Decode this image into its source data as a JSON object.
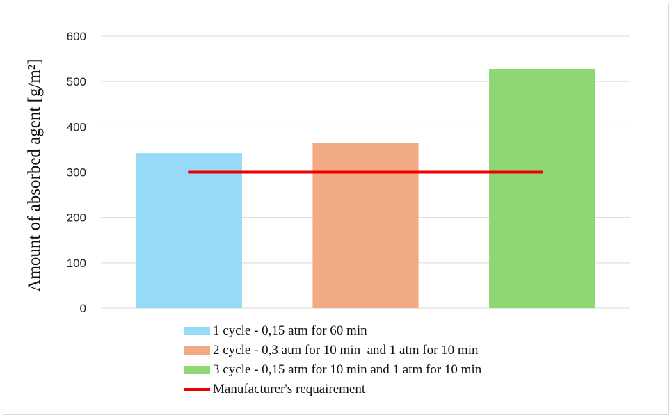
{
  "chart_data": {
    "type": "bar",
    "ylabel": "Amount of absorbed agent [g/m²]",
    "ylim": [
      0,
      600
    ],
    "yticks": [
      0,
      100,
      200,
      300,
      400,
      500,
      600
    ],
    "grid": true,
    "legend_position": "bottom",
    "series": [
      {
        "name": "1 cycle - 0,15 atm for 60 min",
        "value": 342,
        "color": "#97daf7"
      },
      {
        "name": "2 cycle - 0,3 atm for 10 min  and 1 atm for 10 min",
        "value": 364,
        "color": "#f2aa84"
      },
      {
        "name": "3 cycle - 0,15 atm for 10 min and 1 atm for 10 min",
        "value": 528,
        "color": "#8fd775"
      }
    ],
    "reference_line": {
      "name": "Manufacturer's requairement",
      "value": 300,
      "color": "#ee0000"
    }
  }
}
